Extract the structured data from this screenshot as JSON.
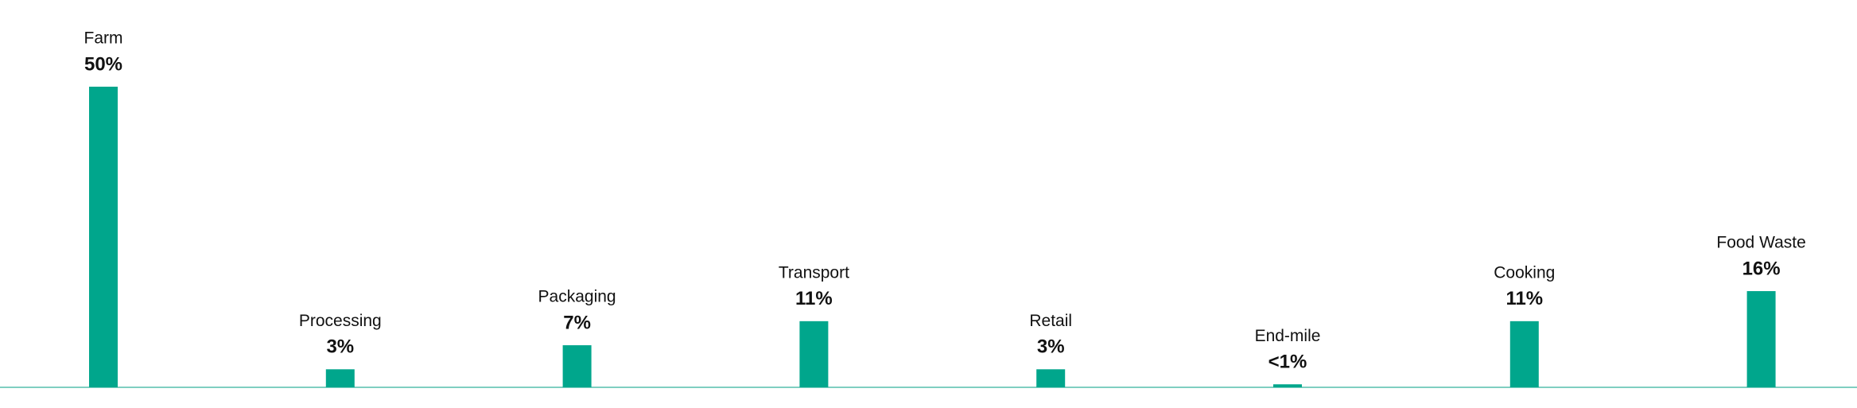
{
  "chart_data": {
    "type": "bar",
    "categories": [
      "Farm",
      "Processing",
      "Packaging",
      "Transport",
      "Retail",
      "End-mile",
      "Cooking",
      "Food Waste"
    ],
    "values": [
      50,
      3,
      7,
      11,
      3,
      0.5,
      11,
      16
    ],
    "value_labels": [
      "50%",
      "3%",
      "7%",
      "11%",
      "3%",
      "<1%",
      "11%",
      "16%"
    ],
    "color": "#00a68c"
  }
}
